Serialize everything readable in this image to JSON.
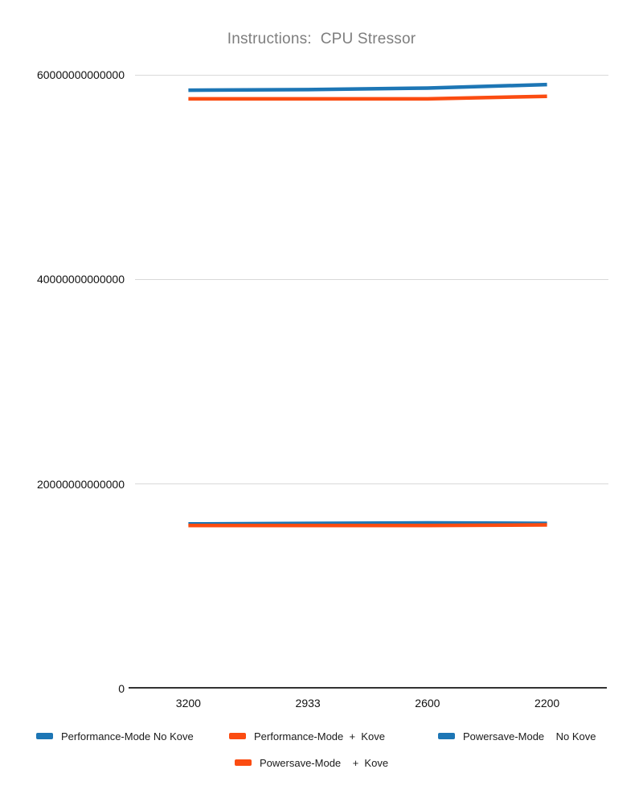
{
  "chart_data": {
    "type": "line",
    "title": "Instructions:  CPU Stressor",
    "title_color": "#7e7e7e",
    "categories": [
      "3200",
      "2933",
      "2600",
      "2200"
    ],
    "series": [
      {
        "name": "Performance-Mode No Kove",
        "color": "#1d76b5",
        "values": [
          58500000000000,
          58550000000000,
          58700000000000,
          59050000000000
        ]
      },
      {
        "name": "Performance-Mode + Kove",
        "color": "#fb4c11",
        "values": [
          57650000000000,
          57650000000000,
          57650000000000,
          57900000000000
        ]
      },
      {
        "name": "Powersave-Mode No Kove",
        "color": "#1d76b5",
        "values": [
          16100000000000,
          16150000000000,
          16200000000000,
          16150000000000
        ]
      },
      {
        "name": "Powersave-Mode + Kove",
        "color": "#fb4c11",
        "values": [
          15950000000000,
          15950000000000,
          15950000000000,
          16000000000000
        ]
      }
    ],
    "xlabel": "",
    "ylabel": "",
    "ylim": [
      0,
      60000000000000
    ],
    "yticks": [
      {
        "value": 0,
        "label": "0"
      },
      {
        "value": 20000000000000,
        "label": "20000000000000"
      },
      {
        "value": 40000000000000,
        "label": "40000000000000"
      },
      {
        "value": 60000000000000,
        "label": "60000000000000"
      }
    ],
    "grid": true,
    "gridline_color": "#d9d9d9",
    "axis_color": "#333333",
    "legend_position": "bottom"
  },
  "legend": {
    "items": [
      {
        "label": "Performance-Mode No Kove",
        "color": "#1d76b5"
      },
      {
        "label": "Performance-Mode  +  Kove",
        "color": "#fb4c11"
      },
      {
        "label": "Powersave-Mode    No Kove",
        "color": "#1d76b5"
      },
      {
        "label": "Powersave-Mode    +  Kove",
        "color": "#fb4c11"
      }
    ]
  }
}
